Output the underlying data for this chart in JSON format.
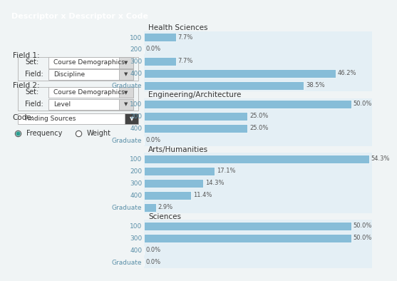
{
  "title": "Descriptor x Descriptor x Code",
  "title_bg": "#2a9d8f",
  "bar_color": "#87bdd8",
  "bar_bg": "#dde9f0",
  "groups": [
    {
      "name": "Health Sciences",
      "bars": [
        {
          "label": "100",
          "value": 7.7
        },
        {
          "label": "200",
          "value": 0.0
        },
        {
          "label": "300",
          "value": 7.7
        },
        {
          "label": "400",
          "value": 46.2
        },
        {
          "label": "Graduate",
          "value": 38.5
        }
      ]
    },
    {
      "name": "Engineering/Architecture",
      "bars": [
        {
          "label": "100",
          "value": 50.0
        },
        {
          "label": "200",
          "value": 25.0
        },
        {
          "label": "400",
          "value": 25.0
        },
        {
          "label": "Graduate",
          "value": 0.0
        }
      ]
    },
    {
      "name": "Arts/Humanities",
      "bars": [
        {
          "label": "100",
          "value": 54.3
        },
        {
          "label": "200",
          "value": 17.1
        },
        {
          "label": "300",
          "value": 14.3
        },
        {
          "label": "400",
          "value": 11.4
        },
        {
          "label": "Graduate",
          "value": 2.9
        }
      ]
    },
    {
      "name": "Sciences",
      "bars": [
        {
          "label": "100",
          "value": 50.0
        },
        {
          "label": "300",
          "value": 50.0
        },
        {
          "label": "400",
          "value": 0.0
        },
        {
          "label": "Graduate",
          "value": 0.0
        }
      ]
    }
  ],
  "left_panel": {
    "field1_set": "Course Demographics",
    "field1_field": "Discipline",
    "field2_set": "Course Demographics",
    "field2_field": "Level",
    "code": "Finding Sources"
  },
  "xlim": 55.0,
  "bar_height": 0.7,
  "label_color": "#5a8fa8",
  "value_fontsize": 6.0,
  "label_fontsize": 6.5,
  "group_title_fontsize": 7.5
}
